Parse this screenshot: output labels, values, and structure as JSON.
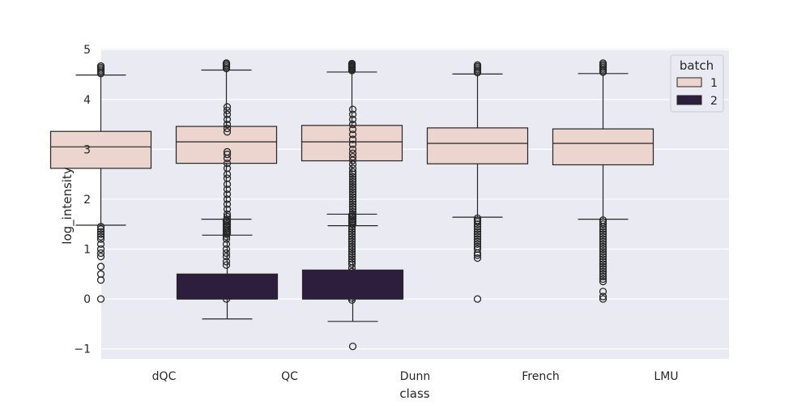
{
  "chart_data": {
    "type": "box",
    "xlabel": "class",
    "ylabel": "log_intensity",
    "categories": [
      "dQC",
      "QC",
      "Dunn",
      "French",
      "LMU"
    ],
    "ylim": [
      -1.2,
      5.02
    ],
    "yticks": [
      -1,
      0,
      1,
      2,
      3,
      4,
      5
    ],
    "ytick_labels": [
      "−1",
      "0",
      "1",
      "2",
      "3",
      "4",
      "5"
    ],
    "grid": true,
    "legend": {
      "title": "batch",
      "placement": "top-right"
    },
    "colors": {
      "background": "#eaeaf2",
      "grid": "#ffffff",
      "batch_1": "#ecd4cf",
      "batch_2": "#2d1e3e",
      "edge": "#262626"
    },
    "series": [
      {
        "name": "1",
        "boxes": [
          {
            "category": "dQC",
            "whisker_low": 1.48,
            "q1": 2.62,
            "median": 3.05,
            "q3": 3.36,
            "whisker_high": 4.49,
            "outliers_low": [
              1.45,
              1.4,
              1.35,
              1.3,
              1.25,
              1.2,
              1.1,
              1.0,
              0.92,
              0.85,
              0.65,
              0.5,
              0.38,
              0.0
            ],
            "outliers_high": [
              4.52,
              4.55,
              4.58,
              4.61,
              4.64,
              4.67
            ]
          },
          {
            "category": "QC",
            "whisker_low": 1.6,
            "q1": 2.72,
            "median": 3.15,
            "q3": 3.46,
            "whisker_high": 4.59,
            "outliers_low": [
              1.58,
              1.55,
              1.5,
              1.45,
              1.4,
              1.35,
              1.3,
              1.25,
              1.2,
              1.1,
              1.0,
              0.92,
              0.85,
              0.75,
              0.68,
              0.0
            ],
            "outliers_high": [
              4.62,
              4.65,
              4.68,
              4.71,
              4.73
            ]
          },
          {
            "category": "Dunn",
            "whisker_low": 1.7,
            "q1": 2.77,
            "median": 3.15,
            "q3": 3.48,
            "whisker_high": 4.55,
            "outliers_low": [
              1.68,
              1.65,
              1.6,
              1.55,
              1.5,
              1.45,
              1.4,
              1.35,
              1.3,
              1.25,
              1.2,
              1.15,
              1.1,
              1.05,
              1.0,
              0.95,
              0.9,
              0.85,
              0.8,
              0.75,
              0.7,
              0.62,
              0.55,
              0.45,
              0.35,
              0.3,
              0.2,
              0.08,
              0.02,
              -0.02
            ],
            "outliers_high": [
              4.58,
              4.6,
              4.62,
              4.64,
              4.66,
              4.68,
              4.7,
              4.72
            ]
          },
          {
            "category": "French",
            "whisker_low": 1.64,
            "q1": 2.71,
            "median": 3.12,
            "q3": 3.43,
            "whisker_high": 4.51,
            "outliers_low": [
              1.62,
              1.58,
              1.55,
              1.5,
              1.45,
              1.4,
              1.35,
              1.3,
              1.25,
              1.2,
              1.15,
              1.1,
              1.05,
              1.0,
              0.92,
              0.88,
              0.82,
              0.0
            ],
            "outliers_high": [
              4.54,
              4.57,
              4.6,
              4.63,
              4.66,
              4.69
            ]
          },
          {
            "category": "LMU",
            "whisker_low": 1.6,
            "q1": 2.69,
            "median": 3.12,
            "q3": 3.41,
            "whisker_high": 4.52,
            "outliers_low": [
              1.58,
              1.54,
              1.5,
              1.45,
              1.4,
              1.35,
              1.3,
              1.25,
              1.2,
              1.15,
              1.1,
              1.05,
              1.0,
              0.95,
              0.9,
              0.85,
              0.8,
              0.75,
              0.7,
              0.65,
              0.6,
              0.55,
              0.5,
              0.45,
              0.4,
              0.35,
              0.15,
              0.05,
              0.0
            ],
            "outliers_high": [
              4.55,
              4.58,
              4.61,
              4.64,
              4.67,
              4.7,
              4.73
            ]
          }
        ]
      },
      {
        "name": "2",
        "boxes": [
          {
            "category": "dQC",
            "whisker_low": -0.4,
            "q1": 0.0,
            "median": 0.0,
            "q3": 0.5,
            "whisker_high": 1.28,
            "outliers_low": [],
            "outliers_high": [
              1.32,
              1.36,
              1.4,
              1.45,
              1.5,
              1.55,
              1.6,
              1.65,
              1.7,
              1.8,
              1.9,
              2.0,
              2.1,
              2.2,
              2.3,
              2.42,
              2.5,
              2.62,
              2.72,
              2.82,
              2.9,
              2.95,
              3.35,
              3.42,
              3.5,
              3.6,
              3.7,
              3.78,
              3.85
            ]
          },
          {
            "category": "QC",
            "whisker_low": -0.45,
            "q1": 0.0,
            "median": 0.0,
            "q3": 0.58,
            "whisker_high": 1.47,
            "outliers_low": [
              -0.95
            ],
            "outliers_high": [
              1.5,
              1.55,
              1.6,
              1.65,
              1.7,
              1.75,
              1.8,
              1.85,
              1.9,
              1.95,
              2.0,
              2.05,
              2.1,
              2.15,
              2.2,
              2.25,
              2.3,
              2.35,
              2.4,
              2.45,
              2.5,
              2.55,
              2.62,
              2.7,
              2.78,
              2.85,
              2.92,
              3.0,
              3.1,
              3.2,
              3.3,
              3.4,
              3.5,
              3.6,
              3.7,
              3.8
            ]
          }
        ]
      }
    ]
  }
}
